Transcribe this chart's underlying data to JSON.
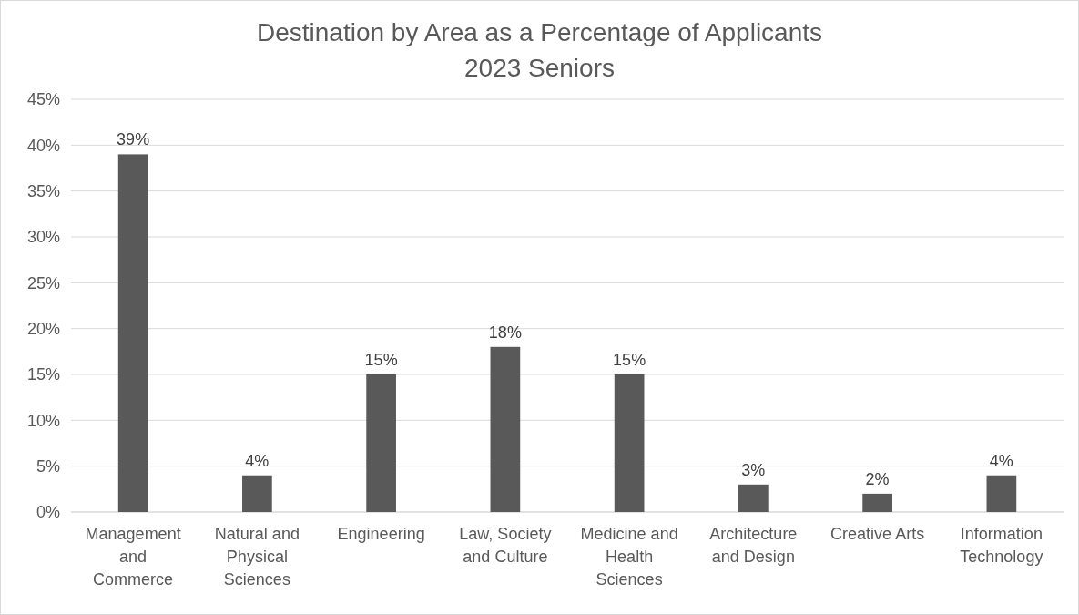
{
  "chart_data": {
    "type": "bar",
    "title": "Destination by Area as a Percentage of Applicants",
    "subtitle": "2023 Seniors",
    "categories": [
      "Management and Commerce",
      "Natural and Physical Sciences",
      "Engineering",
      "Law, Society and Culture",
      "Medicine and Health Sciences",
      "Architecture and Design",
      "Creative Arts",
      "Information Technology"
    ],
    "values": [
      39,
      4,
      15,
      18,
      15,
      3,
      2,
      4
    ],
    "value_labels": [
      "39%",
      "4%",
      "15%",
      "18%",
      "15%",
      "3%",
      "2%",
      "4%"
    ],
    "color": "#595959",
    "ylim": [
      0,
      45
    ],
    "yticks": [
      {
        "value": 0,
        "label": "0%"
      },
      {
        "value": 5,
        "label": "5%"
      },
      {
        "value": 10,
        "label": "10%"
      },
      {
        "value": 15,
        "label": "15%"
      },
      {
        "value": 20,
        "label": "20%"
      },
      {
        "value": 25,
        "label": "25%"
      },
      {
        "value": 30,
        "label": "30%"
      },
      {
        "value": 35,
        "label": "35%"
      },
      {
        "value": 40,
        "label": "40%"
      },
      {
        "value": 45,
        "label": "45%"
      }
    ],
    "grid": "y"
  }
}
